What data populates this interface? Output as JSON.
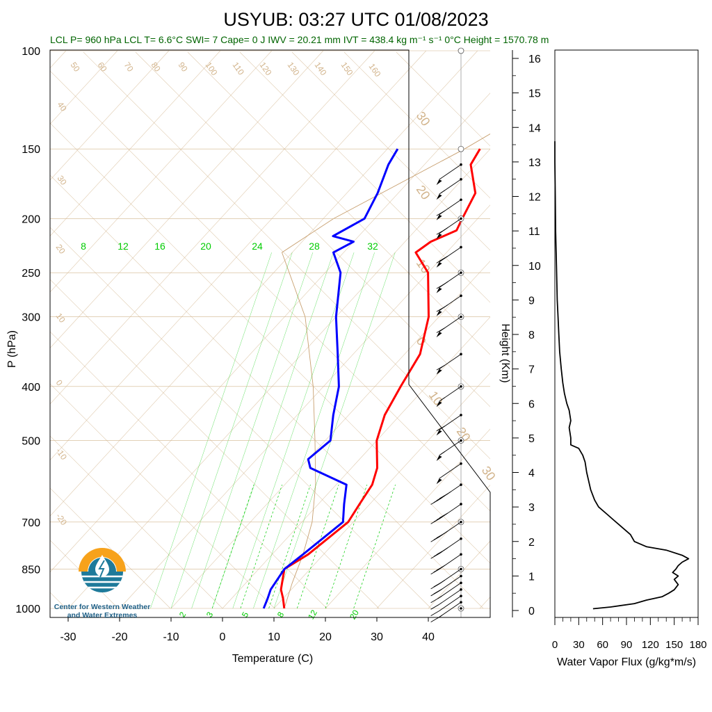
{
  "title": "USYUB: 03:27 UTC 01/08/2023",
  "subtitle": "LCL P= 960 hPa  LCL T= 6.6°C  SWI= 7  Cape= 0 J  IWV = 20.21 mm  IVT = 438.4 kg m⁻¹ s⁻¹  0°C Height = 1570.78 m",
  "colors": {
    "temperature": "#ff0000",
    "dewpoint": "#0000ff",
    "subtitle": "#006400",
    "isotherm": "#d2b48c",
    "mixing_ratio": "#00cc00",
    "logo_orange": "#f7a21b",
    "logo_blue": "#1e7a9a"
  },
  "logo": {
    "line1": "Center for Western Weather",
    "line2": "and Water Extremes",
    "icon": "water-drop-icon"
  },
  "chart_data": [
    {
      "type": "line",
      "name": "skew-t",
      "xlabel": "Temperature (C)",
      "ylabel": "P (hPa)",
      "x_ticks": [
        -30,
        -20,
        -10,
        0,
        10,
        20,
        30,
        40
      ],
      "p_ticks": [
        100,
        150,
        200,
        250,
        300,
        400,
        500,
        700,
        850,
        1000
      ],
      "plim": [
        1000,
        100
      ],
      "isotherm_labels": [
        160,
        150,
        140,
        130,
        120,
        110,
        100,
        90,
        80,
        70,
        60,
        50,
        40,
        30,
        20,
        10,
        0,
        -10,
        -20,
        30,
        20,
        10,
        0,
        10,
        20,
        30
      ],
      "mixing_ratio_labels_upper": [
        "8",
        "12",
        "16",
        "20",
        "24",
        "28",
        "32"
      ],
      "mixing_ratio_labels_lower": [
        "2",
        "3",
        "5",
        "8",
        "12",
        "20"
      ],
      "series": [
        {
          "name": "Temperature",
          "points": [
            [
              1000,
              12
            ],
            [
              960,
              10
            ],
            [
              925,
              8
            ],
            [
              850,
              5
            ],
            [
              800,
              7
            ],
            [
              700,
              9
            ],
            [
              650,
              8
            ],
            [
              600,
              7
            ],
            [
              560,
              5
            ],
            [
              500,
              0
            ],
            [
              450,
              -3
            ],
            [
              400,
              -5
            ],
            [
              350,
              -7
            ],
            [
              300,
              -12
            ],
            [
              250,
              -20
            ],
            [
              230,
              -26
            ],
            [
              220,
              -25
            ],
            [
              210,
              -22
            ],
            [
              200,
              -23
            ],
            [
              180,
              -25
            ],
            [
              160,
              -31
            ],
            [
              150,
              -32
            ]
          ]
        },
        {
          "name": "Dewpoint",
          "points": [
            [
              1000,
              8
            ],
            [
              960,
              7
            ],
            [
              925,
              6
            ],
            [
              850,
              5
            ],
            [
              800,
              6
            ],
            [
              700,
              8
            ],
            [
              650,
              5
            ],
            [
              600,
              2
            ],
            [
              560,
              -8
            ],
            [
              540,
              -10
            ],
            [
              500,
              -9
            ],
            [
              450,
              -13
            ],
            [
              400,
              -17
            ],
            [
              350,
              -23
            ],
            [
              300,
              -30
            ],
            [
              250,
              -37
            ],
            [
              230,
              -42
            ],
            [
              220,
              -40
            ],
            [
              215,
              -45
            ],
            [
              200,
              -42
            ],
            [
              180,
              -44
            ],
            [
              160,
              -47
            ],
            [
              150,
              -48
            ]
          ]
        }
      ],
      "wind_barbs": [
        {
          "p": 1000,
          "speed_kt": 0
        },
        {
          "p": 975,
          "speed_kt": 15
        },
        {
          "p": 950,
          "speed_kt": 10
        },
        {
          "p": 925,
          "speed_kt": 10
        },
        {
          "p": 900,
          "speed_kt": 15
        },
        {
          "p": 875,
          "speed_kt": 20
        },
        {
          "p": 850,
          "speed_kt": 25
        },
        {
          "p": 800,
          "speed_kt": 30
        },
        {
          "p": 750,
          "speed_kt": 35
        },
        {
          "p": 700,
          "speed_kt": 35
        },
        {
          "p": 650,
          "speed_kt": 40
        },
        {
          "p": 600,
          "speed_kt": 45
        },
        {
          "p": 550,
          "speed_kt": 50
        },
        {
          "p": 500,
          "speed_kt": 55
        },
        {
          "p": 450,
          "speed_kt": 60
        },
        {
          "p": 400,
          "speed_kt": 55
        },
        {
          "p": 350,
          "speed_kt": 60
        },
        {
          "p": 300,
          "speed_kt": 60
        },
        {
          "p": 275,
          "speed_kt": 65
        },
        {
          "p": 250,
          "speed_kt": 65
        },
        {
          "p": 225,
          "speed_kt": 70
        },
        {
          "p": 200,
          "speed_kt": 65
        },
        {
          "p": 185,
          "speed_kt": 60
        },
        {
          "p": 170,
          "speed_kt": 55
        },
        {
          "p": 160,
          "speed_kt": 50
        }
      ]
    },
    {
      "type": "line",
      "name": "water-vapor-flux-profile",
      "xlabel": "Water Vapor Flux (g/kg*m/s)",
      "ylabel": "Height (Km)",
      "xlim": [
        0,
        180
      ],
      "ylim": [
        -0.2,
        16.3
      ],
      "x_ticks": [
        0,
        30,
        60,
        90,
        120,
        150,
        180
      ],
      "y_ticks": [
        0,
        1,
        2,
        3,
        4,
        5,
        6,
        7,
        8,
        9,
        10,
        11,
        12,
        13,
        14,
        15,
        16
      ],
      "series": [
        {
          "name": "Water Vapor Flux",
          "points": [
            [
              48,
              0.05
            ],
            [
              70,
              0.1
            ],
            [
              100,
              0.2
            ],
            [
              115,
              0.3
            ],
            [
              125,
              0.35
            ],
            [
              135,
              0.4
            ],
            [
              143,
              0.5
            ],
            [
              150,
              0.6
            ],
            [
              155,
              0.75
            ],
            [
              150,
              0.9
            ],
            [
              155,
              1.0
            ],
            [
              148,
              1.1
            ],
            [
              152,
              1.2
            ],
            [
              155,
              1.3
            ],
            [
              160,
              1.4
            ],
            [
              168,
              1.5
            ],
            [
              160,
              1.6
            ],
            [
              140,
              1.75
            ],
            [
              115,
              1.85
            ],
            [
              100,
              2.0
            ],
            [
              95,
              2.2
            ],
            [
              85,
              2.4
            ],
            [
              75,
              2.6
            ],
            [
              65,
              2.8
            ],
            [
              55,
              3.0
            ],
            [
              50,
              3.2
            ],
            [
              45,
              3.5
            ],
            [
              42,
              3.8
            ],
            [
              40,
              4.0
            ],
            [
              38,
              4.3
            ],
            [
              35,
              4.5
            ],
            [
              30,
              4.7
            ],
            [
              20,
              4.8
            ],
            [
              20,
              5.0
            ],
            [
              18,
              5.3
            ],
            [
              20,
              5.5
            ],
            [
              18,
              5.8
            ],
            [
              15,
              6.0
            ],
            [
              12,
              6.3
            ],
            [
              10,
              6.6
            ],
            [
              8,
              7.0
            ],
            [
              6,
              7.5
            ],
            [
              5,
              8.0
            ],
            [
              4,
              8.5
            ],
            [
              3,
              9.0
            ],
            [
              2,
              10.0
            ],
            [
              1,
              11.0
            ],
            [
              0.5,
              12.0
            ],
            [
              0,
              13.0
            ],
            [
              0,
              13.6
            ]
          ]
        }
      ]
    }
  ]
}
